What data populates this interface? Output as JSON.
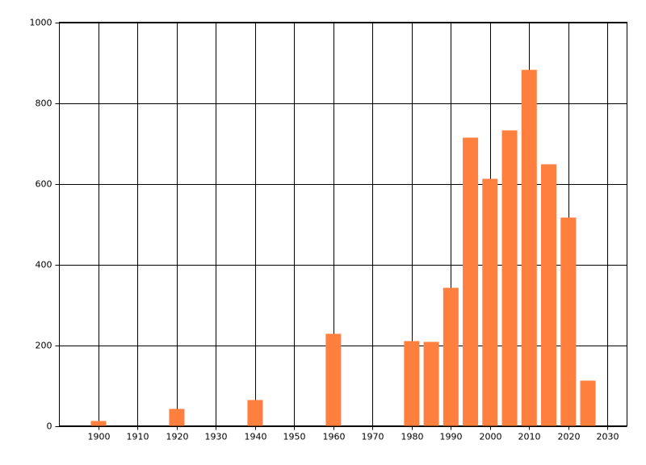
{
  "chart_data": {
    "type": "bar",
    "x": [
      1900,
      1920,
      1940,
      1960,
      1980,
      1985,
      1990,
      1995,
      2000,
      2005,
      2010,
      2015,
      2020,
      2025
    ],
    "values": [
      12,
      42,
      64,
      228,
      210,
      208,
      342,
      714,
      612,
      732,
      882,
      648,
      516,
      112
    ],
    "color": "#ff7f3f",
    "xlim": [
      1890,
      2035
    ],
    "xticks": [
      1900,
      1910,
      1920,
      1930,
      1940,
      1950,
      1960,
      1970,
      1980,
      1990,
      2000,
      2010,
      2020,
      2030
    ],
    "ylim": [
      0,
      1000
    ],
    "yticks": [
      0,
      200,
      400,
      600,
      800,
      1000
    ],
    "grid": true
  }
}
